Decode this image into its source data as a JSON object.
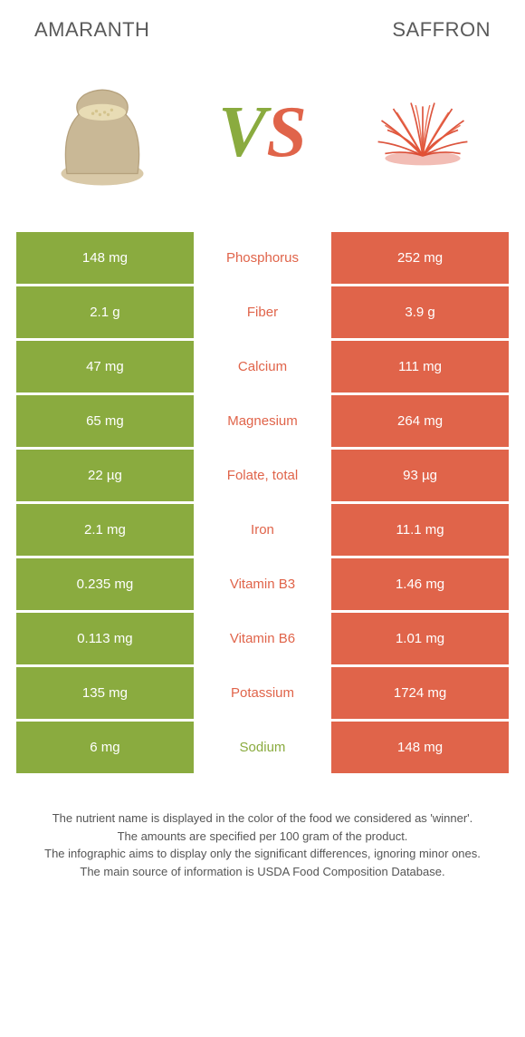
{
  "colors": {
    "left": "#8aab3f",
    "right": "#e0644a",
    "mid_bg": "#ffffff",
    "text_light": "#ffffff"
  },
  "header": {
    "left_title": "Amaranth",
    "right_title": "Saffron",
    "vs_v": "V",
    "vs_s": "S"
  },
  "rows": [
    {
      "left": "148 mg",
      "label": "Phosphorus",
      "right": "252 mg",
      "winner": "right"
    },
    {
      "left": "2.1 g",
      "label": "Fiber",
      "right": "3.9 g",
      "winner": "right"
    },
    {
      "left": "47 mg",
      "label": "Calcium",
      "right": "111 mg",
      "winner": "right"
    },
    {
      "left": "65 mg",
      "label": "Magnesium",
      "right": "264 mg",
      "winner": "right"
    },
    {
      "left": "22 µg",
      "label": "Folate, total",
      "right": "93 µg",
      "winner": "right"
    },
    {
      "left": "2.1 mg",
      "label": "Iron",
      "right": "11.1 mg",
      "winner": "right"
    },
    {
      "left": "0.235 mg",
      "label": "Vitamin B3",
      "right": "1.46 mg",
      "winner": "right"
    },
    {
      "left": "0.113 mg",
      "label": "Vitamin B6",
      "right": "1.01 mg",
      "winner": "right"
    },
    {
      "left": "135 mg",
      "label": "Potassium",
      "right": "1724 mg",
      "winner": "right"
    },
    {
      "left": "6 mg",
      "label": "Sodium",
      "right": "148 mg",
      "winner": "left"
    }
  ],
  "footnote": {
    "l1": "The nutrient name is displayed in the color of the food we considered as 'winner'.",
    "l2": "The amounts are specified per 100 gram of the product.",
    "l3": "The infographic aims to display only the significant differences, ignoring minor ones.",
    "l4": "The main source of information is USDA Food Composition Database."
  }
}
